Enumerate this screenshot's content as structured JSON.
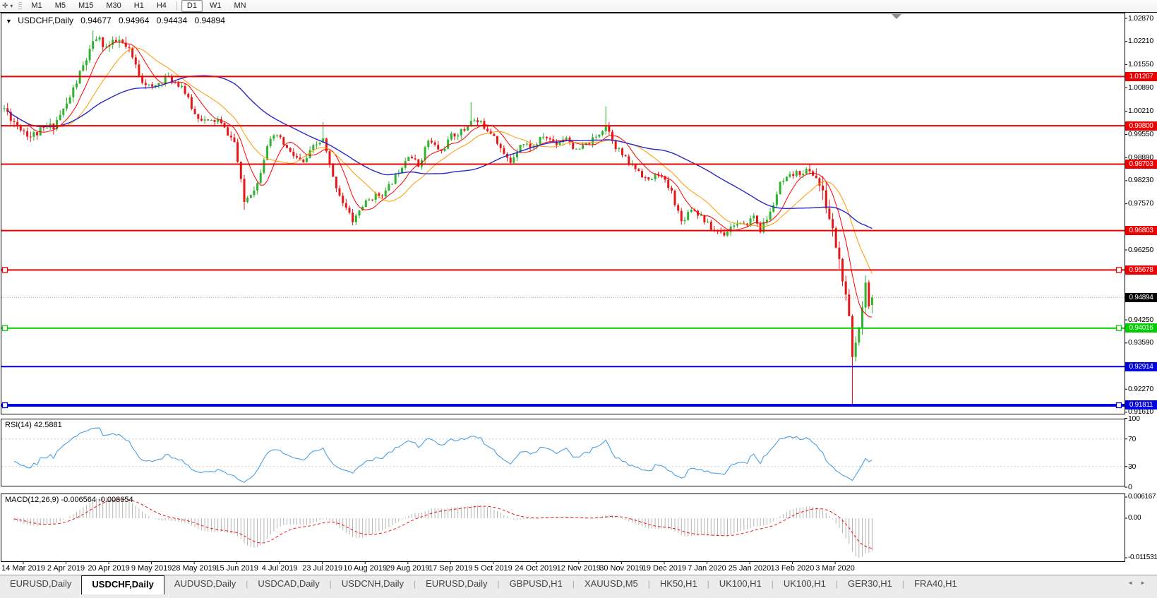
{
  "icons": {
    "cursor": "✛",
    "dropdown": "▾",
    "collapse": "▼",
    "scroll_left": "◄",
    "scroll_right": "►"
  },
  "toolbar": {
    "timeframes": [
      "M1",
      "M5",
      "M15",
      "M30",
      "H1",
      "H4",
      "D1",
      "W1",
      "MN"
    ],
    "active": "D1"
  },
  "chart": {
    "symbol_title": "USDCHF,Daily",
    "open": "0.94677",
    "high": "0.94964",
    "low": "0.94434",
    "close": "0.94894",
    "price_ticks": [
      "1.02870",
      "1.02210",
      "1.01550",
      "1.00890",
      "1.00210",
      "0.99550",
      "0.98890",
      "0.98230",
      "0.97570",
      "0.96250",
      "0.94250",
      "0.93590",
      "0.92270",
      "0.91610"
    ],
    "levels": [
      {
        "price": "1.01207",
        "color": "#ee0000",
        "width": 2,
        "selected": false
      },
      {
        "price": "0.99800",
        "color": "#ee0000",
        "width": 2,
        "selected": false
      },
      {
        "price": "0.98703",
        "color": "#ee0000",
        "width": 2,
        "selected": false
      },
      {
        "price": "0.96803",
        "color": "#ee0000",
        "width": 2,
        "selected": false
      },
      {
        "price": "0.95678",
        "color": "#ee0000",
        "width": 2,
        "selected": true
      },
      {
        "price": "0.94016",
        "color": "#00cc00",
        "width": 2,
        "selected": true
      },
      {
        "price": "0.92914",
        "color": "#0000dd",
        "width": 2,
        "selected": false
      },
      {
        "price": "0.91811",
        "color": "#0000dd",
        "width": 4,
        "selected": true
      }
    ],
    "current_price": "0.94894",
    "dates": [
      "14 Mar 2019",
      "2 Apr 2019",
      "20 Apr 2019",
      "9 May 2019",
      "28 May 2019",
      "15 Jun 2019",
      "4 Jul 2019",
      "23 Jul 2019",
      "10 Aug 2019",
      "29 Aug 2019",
      "17 Sep 2019",
      "5 Oct 2019",
      "24 Oct 2019",
      "12 Nov 2019",
      "30 Nov 2019",
      "19 Dec 2019",
      "7 Jan 2020",
      "25 Jan 2020",
      "13 Feb 2020",
      "3 Mar 2020"
    ]
  },
  "rsi": {
    "name": "RSI(14)",
    "value": "42.5881",
    "axis": [
      "100",
      "70",
      "30",
      "0"
    ],
    "levels": [
      70,
      30
    ],
    "color": "#4d9fe0"
  },
  "macd": {
    "name": "MACD(12,26,9)",
    "values": "-0.006564 -0.008654",
    "axis": [
      "0.006167",
      "0.00",
      "-0.011531"
    ],
    "hist_color": "#b4b4b4",
    "signal_color": "#ee1111"
  },
  "tabs": {
    "items": [
      "EURUSD,Daily",
      "USDCHF,Daily",
      "AUDUSD,Daily",
      "USDCAD,Daily",
      "USDCNH,Daily",
      "EURUSD,Daily",
      "GBPUSD,H1",
      "XAUUSD,M5",
      "HK50,H1",
      "UK100,H1",
      "UK100,H1",
      "GER30,H1",
      "FRA40,H1"
    ],
    "active_index": 1
  },
  "chart_data": {
    "type": "candlestick",
    "symbol": "USDCHF",
    "timeframe": "Daily",
    "x_range": [
      "14 Mar 2019",
      "6 Mar 2020"
    ],
    "price_axis_range": [
      0.91387,
      1.03011
    ],
    "last_candle": {
      "open": 0.94677,
      "high": 0.94964,
      "low": 0.94434,
      "close": 0.94894
    },
    "horizontal_levels": [
      1.01207,
      0.998,
      0.98703,
      0.96803,
      0.95678,
      0.94016,
      0.92914,
      0.91811
    ],
    "indicators": {
      "rsi": {
        "period": 14,
        "current": 42.5881
      },
      "macd": {
        "fast": 12,
        "slow": 26,
        "signal": 9,
        "current": -0.006564,
        "signal_current": -0.008654,
        "axis_max": 0.006167,
        "axis_min": -0.011531
      },
      "ma_periods": [
        8,
        17,
        45
      ]
    },
    "candle_count": 265,
    "price_path_anchors": [
      [
        0,
        1.003
      ],
      [
        3,
        0.9992
      ],
      [
        8,
        0.995
      ],
      [
        15,
        0.9982
      ],
      [
        19,
        1.004
      ],
      [
        24,
        1.015
      ],
      [
        28,
        1.0232
      ],
      [
        31,
        1.0205
      ],
      [
        35,
        1.0222
      ],
      [
        38,
        1.0192
      ],
      [
        42,
        1.011
      ],
      [
        45,
        1.0086
      ],
      [
        49,
        1.0118
      ],
      [
        54,
        1.0095
      ],
      [
        58,
        1.0012
      ],
      [
        62,
        0.999
      ],
      [
        65,
        0.9996
      ],
      [
        70,
        0.9933
      ],
      [
        73,
        0.9763
      ],
      [
        77,
        0.9815
      ],
      [
        80,
        0.9928
      ],
      [
        83,
        0.9952
      ],
      [
        87,
        0.9902
      ],
      [
        91,
        0.9872
      ],
      [
        94,
        0.9918
      ],
      [
        97,
        0.994
      ],
      [
        100,
        0.983
      ],
      [
        103,
        0.9762
      ],
      [
        106,
        0.9708
      ],
      [
        109,
        0.9752
      ],
      [
        112,
        0.9776
      ],
      [
        116,
        0.979
      ],
      [
        120,
        0.9852
      ],
      [
        123,
        0.99
      ],
      [
        126,
        0.9866
      ],
      [
        129,
        0.9938
      ],
      [
        133,
        0.9906
      ],
      [
        136,
        0.995
      ],
      [
        140,
        0.9968
      ],
      [
        142,
        0.9998
      ],
      [
        145,
        0.9986
      ],
      [
        149,
        0.9955
      ],
      [
        152,
        0.9896
      ],
      [
        154,
        0.9876
      ],
      [
        157,
        0.993
      ],
      [
        161,
        0.992
      ],
      [
        164,
        0.995
      ],
      [
        168,
        0.993
      ],
      [
        171,
        0.995
      ],
      [
        174,
        0.9906
      ],
      [
        177,
        0.9926
      ],
      [
        180,
        0.9946
      ],
      [
        183,
        0.9984
      ],
      [
        186,
        0.9922
      ],
      [
        190,
        0.9872
      ],
      [
        193,
        0.9852
      ],
      [
        196,
        0.982
      ],
      [
        199,
        0.9846
      ],
      [
        203,
        0.979
      ],
      [
        206,
        0.9706
      ],
      [
        209,
        0.9746
      ],
      [
        212,
        0.9722
      ],
      [
        215,
        0.9686
      ],
      [
        219,
        0.9672
      ],
      [
        222,
        0.97
      ],
      [
        225,
        0.9692
      ],
      [
        228,
        0.9722
      ],
      [
        230,
        0.9682
      ],
      [
        233,
        0.973
      ],
      [
        236,
        0.9812
      ],
      [
        240,
        0.984
      ],
      [
        244,
        0.9852
      ],
      [
        247,
        0.9836
      ],
      [
        250,
        0.9752
      ],
      [
        253,
        0.964
      ],
      [
        255,
        0.9542
      ],
      [
        257,
        0.942
      ],
      [
        258,
        0.9318
      ],
      [
        259,
        0.936
      ],
      [
        261,
        0.9476
      ],
      [
        262,
        0.9528
      ],
      [
        263,
        0.9482
      ],
      [
        264,
        0.94894
      ]
    ],
    "wick_extremes": {
      "27": {
        "high": 1.0252
      },
      "73": {
        "low": 0.974
      },
      "97": {
        "high": 0.9991
      },
      "106": {
        "low": 0.9695
      },
      "142": {
        "high": 1.0047
      },
      "183": {
        "high": 1.0035
      },
      "219": {
        "low": 0.9662
      },
      "230": {
        "low": 0.9672
      },
      "258": {
        "low": 0.9182
      },
      "262": {
        "high": 0.9552
      }
    },
    "colors": {
      "up": "#2db32d",
      "down": "#e81717",
      "ma_fast": "#ff0000",
      "ma_mid": "#ff9900",
      "ma_slow": "#2929c8"
    }
  }
}
